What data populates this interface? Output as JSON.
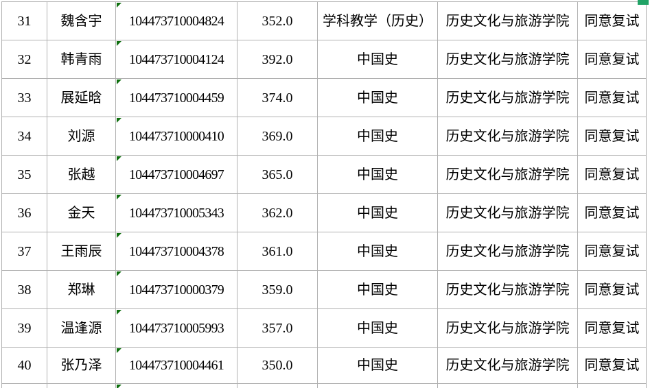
{
  "app": {
    "kind": "spreadsheet-table-view",
    "language": "zh-CN"
  },
  "colors": {
    "background": "#ffffff",
    "gridline": "#b0b0b0",
    "text": "#000000",
    "error_indicator_green": "#0e6f0e",
    "fill_handle_green": "#21a366"
  },
  "icons": {
    "error_indicator": "green-corner-triangle",
    "fill_handle": "green-selection-handle"
  },
  "table": {
    "columns": [
      "index",
      "name",
      "id",
      "score",
      "major",
      "college",
      "status"
    ],
    "rows": [
      {
        "index": "31",
        "name": "魏含宇",
        "id": "104473710004824",
        "score": "352.0",
        "major": "学科教学（历史）",
        "college": "历史文化与旅游学院",
        "status": "同意复试",
        "id_error_indicator": true
      },
      {
        "index": "32",
        "name": "韩青雨",
        "id": "104473710004124",
        "score": "392.0",
        "major": "中国史",
        "college": "历史文化与旅游学院",
        "status": "同意复试",
        "id_error_indicator": true
      },
      {
        "index": "33",
        "name": "展延晗",
        "id": "104473710004459",
        "score": "374.0",
        "major": "中国史",
        "college": "历史文化与旅游学院",
        "status": "同意复试",
        "id_error_indicator": true
      },
      {
        "index": "34",
        "name": "刘源",
        "id": "104473710000410",
        "score": "369.0",
        "major": "中国史",
        "college": "历史文化与旅游学院",
        "status": "同意复试",
        "id_error_indicator": true
      },
      {
        "index": "35",
        "name": "张越",
        "id": "104473710004697",
        "score": "365.0",
        "major": "中国史",
        "college": "历史文化与旅游学院",
        "status": "同意复试",
        "id_error_indicator": true
      },
      {
        "index": "36",
        "name": "金天",
        "id": "104473710005343",
        "score": "362.0",
        "major": "中国史",
        "college": "历史文化与旅游学院",
        "status": "同意复试",
        "id_error_indicator": true
      },
      {
        "index": "37",
        "name": "王雨辰",
        "id": "104473710004378",
        "score": "361.0",
        "major": "中国史",
        "college": "历史文化与旅游学院",
        "status": "同意复试",
        "id_error_indicator": true
      },
      {
        "index": "38",
        "name": "郑琳",
        "id": "104473710000379",
        "score": "359.0",
        "major": "中国史",
        "college": "历史文化与旅游学院",
        "status": "同意复试",
        "id_error_indicator": true
      },
      {
        "index": "39",
        "name": "温逢源",
        "id": "104473710005993",
        "score": "357.0",
        "major": "中国史",
        "college": "历史文化与旅游学院",
        "status": "同意复试",
        "id_error_indicator": true
      },
      {
        "index": "40",
        "name": "张乃泽",
        "id": "104473710004461",
        "score": "350.0",
        "major": "中国史",
        "college": "历史文化与旅游学院",
        "status": "同意复试",
        "id_error_indicator": true
      }
    ],
    "partial_next_row": {
      "visible": true,
      "id_error_indicator": true
    }
  }
}
